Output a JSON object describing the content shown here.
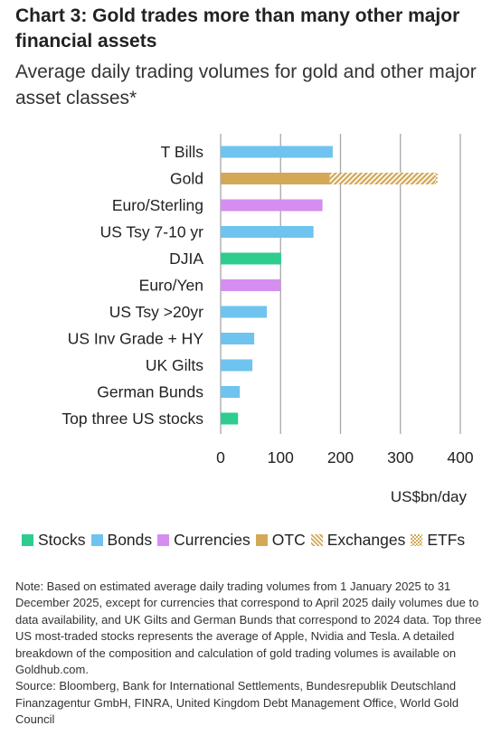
{
  "title": "Chart 3: Gold trades more than many other major financial assets",
  "subtitle": "Average daily trading volumes for gold and other major asset classes*",
  "colors": {
    "Stocks": "#2ecc8f",
    "Bonds": "#6ec3ef",
    "Currencies": "#d58ef0",
    "OTC": "#d4a857",
    "Exchanges": "#d4a857",
    "ETFs": "#d4a857",
    "grid": "#a8a8a8"
  },
  "legend": [
    {
      "label": "Stocks",
      "pattern": "solid"
    },
    {
      "label": "Bonds",
      "pattern": "solid"
    },
    {
      "label": "Currencies",
      "pattern": "solid"
    },
    {
      "label": "OTC",
      "pattern": "solid"
    },
    {
      "label": "Exchanges",
      "pattern": "hatch"
    },
    {
      "label": "ETFs",
      "pattern": "check"
    }
  ],
  "chart_data": {
    "type": "bar",
    "orientation": "horizontal",
    "stacked": true,
    "categories": [
      "T Bills",
      "Gold",
      "Euro/Sterling",
      "US Tsy 7-10 yr",
      "DJIA",
      "Euro/Yen",
      "US Tsy >20yr",
      "US Inv Grade + HY",
      "UK Gilts",
      "German Bunds",
      "Top three US stocks"
    ],
    "category_group": [
      "Bonds",
      "Gold",
      "Currencies",
      "Bonds",
      "Stocks",
      "Currencies",
      "Bonds",
      "Bonds",
      "Bonds",
      "Bonds",
      "Stocks"
    ],
    "series": [
      {
        "name": "OTC",
        "values": [
          null,
          182,
          null,
          null,
          null,
          null,
          null,
          null,
          null,
          null,
          null
        ]
      },
      {
        "name": "Exchanges",
        "values": [
          null,
          176,
          null,
          null,
          null,
          null,
          null,
          null,
          null,
          null,
          null
        ]
      },
      {
        "name": "ETFs",
        "values": [
          null,
          4,
          null,
          null,
          null,
          null,
          null,
          null,
          null,
          null,
          null
        ]
      }
    ],
    "values": [
      187,
      362,
      170,
      155,
      101,
      100,
      77,
      56,
      53,
      32,
      29
    ],
    "xlabel": "US$bn/day",
    "xlim": [
      0,
      400
    ],
    "xticks": [
      0,
      100,
      200,
      300,
      400
    ],
    "xtick_labels": [
      "0",
      "100",
      "200",
      "300",
      "400"
    ],
    "grid": "vertical",
    "legend_position": "bottom"
  },
  "notes": {
    "note": "Note: Based on estimated average daily trading volumes from 1 January 2025 to 31 December 2025, except for currencies that correspond to April 2025 daily volumes due to data availability, and UK Gilts and German Bunds that correspond to 2024 data. Top three US most-traded stocks represents the average of Apple, Nvidia and Tesla. A detailed breakdown of the composition and calculation of gold trading volumes is available on Goldhub.com.",
    "source": "Source: Bloomberg, Bank for International Settlements, Bundesrepublik Deutschland Finanzagentur GmbH, FINRA, United Kingdom Debt Management Office, World Gold Council"
  }
}
